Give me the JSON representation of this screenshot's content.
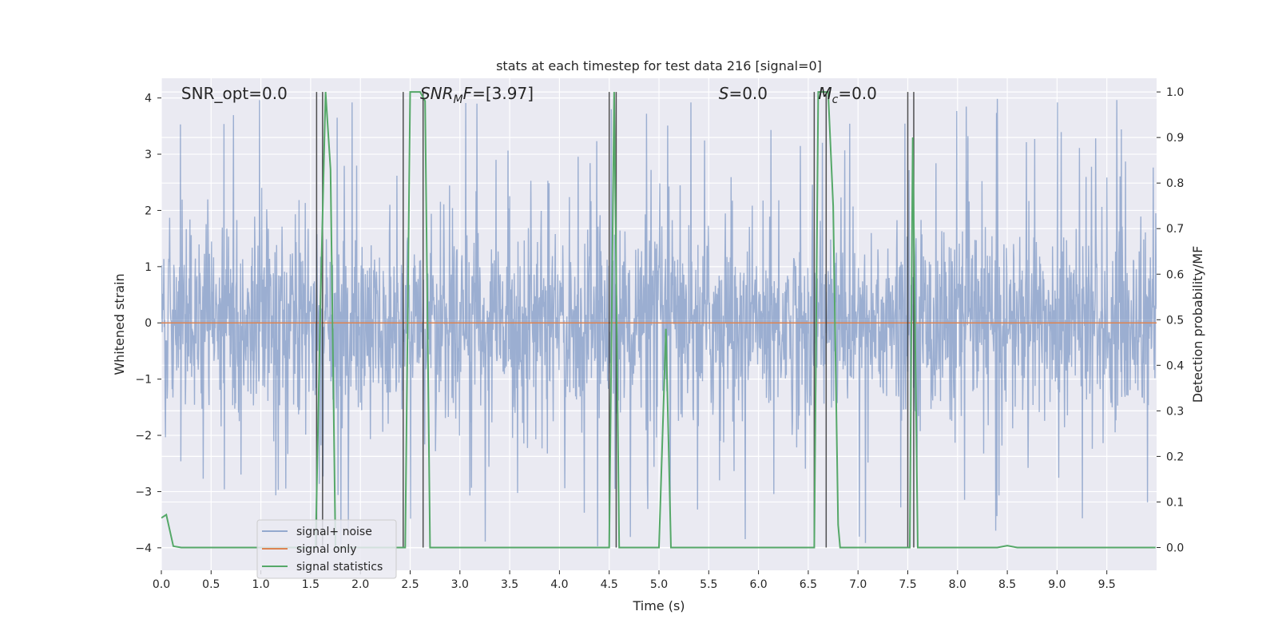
{
  "chart_data": {
    "type": "line",
    "title": "stats at each timestep for test data 216 [signal=0]",
    "xlabel": "Time (s)",
    "ylabel": "Whitened strain",
    "ylabel_right": "Detection probability/MF",
    "xlim": [
      0,
      10
    ],
    "ylim": [
      -4.4,
      4.35
    ],
    "ylim_right": [
      -0.05,
      1.03
    ],
    "x_ticks": [
      0.0,
      0.5,
      1.0,
      1.5,
      2.0,
      2.5,
      3.0,
      3.5,
      4.0,
      4.5,
      5.0,
      5.5,
      6.0,
      6.5,
      7.0,
      7.5,
      8.0,
      8.5,
      9.0,
      9.5
    ],
    "x_tick_labels": [
      "0.0",
      "0.5",
      "1.0",
      "1.5",
      "2.0",
      "2.5",
      "3.0",
      "3.5",
      "4.0",
      "4.5",
      "5.0",
      "5.5",
      "6.0",
      "6.5",
      "7.0",
      "7.5",
      "8.0",
      "8.5",
      "9.0",
      "9.5"
    ],
    "y_ticks": [
      -4,
      -3,
      -2,
      -1,
      0,
      1,
      2,
      3,
      4
    ],
    "y_tick_labels": [
      "−4",
      "−3",
      "−2",
      "−1",
      "0",
      "1",
      "2",
      "3",
      "4"
    ],
    "y_ticks_right": [
      0.0,
      0.1,
      0.2,
      0.3,
      0.4,
      0.5,
      0.6,
      0.7,
      0.8,
      0.9,
      1.0
    ],
    "y_tick_labels_right": [
      "0.0",
      "0.1",
      "0.2",
      "0.3",
      "0.4",
      "0.5",
      "0.6",
      "0.7",
      "0.8",
      "0.9",
      "1.0"
    ],
    "grid": true,
    "legend_position": "lower-left",
    "annotations": [
      {
        "text": "SNR_opt=0.0",
        "x": 0.2
      },
      {
        "text": "SNR_MF=[3.97]",
        "x": 2.6
      },
      {
        "text": "S=0.0",
        "x": 5.6
      },
      {
        "text": "Mc=0.0",
        "x": 6.6
      }
    ],
    "series": [
      {
        "name": "signal+ noise",
        "color": "#4c72b0",
        "opacity": 0.5,
        "kind": "noise",
        "typical_amplitude": 1.4,
        "peak_amplitude": 4.0,
        "ymin_observed": -4.05,
        "ymax_observed": 4.0
      },
      {
        "name": "signal only",
        "color": "#dd8452",
        "values_constant": 0.0
      },
      {
        "name": "signal statistics",
        "color": "#55a868",
        "axis": "right",
        "x": [
          0.0,
          0.05,
          0.12,
          0.2,
          1.55,
          1.6,
          1.65,
          1.7,
          1.75,
          2.4,
          2.45,
          2.5,
          2.55,
          2.6,
          2.65,
          2.7,
          4.5,
          4.55,
          4.6,
          5.0,
          5.07,
          5.12,
          6.56,
          6.6,
          6.65,
          6.7,
          6.75,
          6.8,
          6.82,
          7.48,
          7.52,
          7.55,
          7.6,
          8.4,
          8.5,
          8.6,
          9.99
        ],
        "y": [
          0.065,
          0.072,
          0.003,
          0.0,
          0.0,
          0.55,
          1.0,
          0.83,
          0.0,
          0.0,
          0.0,
          1.0,
          1.0,
          1.0,
          0.98,
          0.0,
          0.0,
          1.0,
          0.0,
          0.0,
          0.48,
          0.0,
          0.0,
          1.0,
          1.0,
          1.0,
          0.75,
          0.05,
          0.0,
          0.0,
          0.0,
          0.9,
          0.0,
          0.0,
          0.004,
          0.0,
          0.0
        ]
      }
    ],
    "vlines": [
      1.56,
      1.62,
      2.43,
      2.63,
      4.5,
      4.57,
      6.56,
      6.68,
      7.5,
      7.56
    ],
    "vline_color": "#333333"
  }
}
